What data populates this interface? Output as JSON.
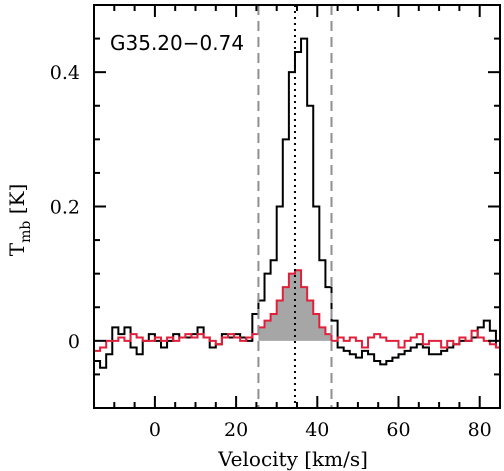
{
  "chart_data": {
    "type": "line",
    "title": "",
    "annotation": "G35.20−0.74",
    "xlabel": "Velocity [km/s]",
    "ylabel_main": "T",
    "ylabel_sub": "mb",
    "ylabel_unit": " [K]",
    "xlim": [
      -15,
      85
    ],
    "ylim": [
      -0.1,
      0.5
    ],
    "x_ticks": [
      0,
      20,
      40,
      60,
      80
    ],
    "x_tick_labels": [
      "0",
      "20",
      "40",
      "60",
      "80"
    ],
    "y_ticks": [
      0,
      0.2,
      0.4
    ],
    "y_tick_labels": [
      "0",
      "0.2",
      "0.4"
    ],
    "grid": false,
    "legend": "none",
    "bin_width": 1.5,
    "vlines": [
      {
        "x": 25.5,
        "style": "dashed",
        "color": "#909090"
      },
      {
        "x": 34.5,
        "style": "dotted",
        "color": "#000000"
      },
      {
        "x": 43.5,
        "style": "dashed",
        "color": "#909090"
      }
    ],
    "series": [
      {
        "color": "#000000",
        "style": "step",
        "x": [
          -15,
          -13.5,
          -12,
          -10.5,
          -9,
          -7.5,
          -6,
          -4.5,
          -3,
          -1.5,
          0,
          1.5,
          3,
          4.5,
          6,
          7.5,
          9,
          10.5,
          12,
          13.5,
          15,
          16.5,
          18,
          19.5,
          21,
          22.5,
          24,
          25.5,
          27,
          28.5,
          30,
          31.5,
          33,
          34.5,
          36,
          37.5,
          39,
          40.5,
          42,
          43.5,
          45,
          46.5,
          48,
          49.5,
          51,
          52.5,
          54,
          55.5,
          57,
          58.5,
          60,
          61.5,
          63,
          64.5,
          66,
          67.5,
          69,
          70.5,
          72,
          73.5,
          75,
          76.5,
          78,
          79.5,
          81,
          82.5,
          84
        ],
        "values": [
          -0.03,
          -0.04,
          -0.02,
          0.02,
          0.01,
          0.02,
          -0.01,
          -0.02,
          0.0,
          0.01,
          0.0,
          -0.01,
          0.0,
          0.01,
          0.005,
          0.005,
          0.01,
          0.02,
          0.005,
          -0.01,
          -0.005,
          0.01,
          0.005,
          0.01,
          0.005,
          0.0,
          0.04,
          0.06,
          0.1,
          0.12,
          0.2,
          0.3,
          0.4,
          0.43,
          0.45,
          0.35,
          0.2,
          0.12,
          0.08,
          0.03,
          -0.01,
          -0.015,
          -0.02,
          -0.025,
          -0.015,
          -0.02,
          -0.03,
          -0.035,
          -0.03,
          -0.025,
          -0.02,
          -0.015,
          -0.01,
          -0.005,
          -0.01,
          -0.02,
          -0.02,
          -0.015,
          -0.01,
          -0.005,
          0.0,
          0.0,
          0.005,
          0.02,
          0.03,
          0.015,
          -0.01
        ]
      },
      {
        "color": "#e0203a",
        "style": "step",
        "filled": true,
        "fill_color": "#a6a6a6",
        "fill_range": [
          25.5,
          43.5
        ],
        "x": [
          -15,
          -13.5,
          -12,
          -10.5,
          -9,
          -7.5,
          -6,
          -4.5,
          -3,
          -1.5,
          0,
          1.5,
          3,
          4.5,
          6,
          7.5,
          9,
          10.5,
          12,
          13.5,
          15,
          16.5,
          18,
          19.5,
          21,
          22.5,
          24,
          25.5,
          27,
          28.5,
          30,
          31.5,
          33,
          34.5,
          36,
          37.5,
          39,
          40.5,
          42,
          43.5,
          45,
          46.5,
          48,
          49.5,
          51,
          52.5,
          54,
          55.5,
          57,
          58.5,
          60,
          61.5,
          63,
          64.5,
          66,
          67.5,
          69,
          70.5,
          72,
          73.5,
          75,
          76.5,
          78,
          79.5,
          81,
          82.5,
          84
        ],
        "values": [
          -0.015,
          -0.01,
          0.0,
          0.0,
          0.005,
          0.0,
          0.01,
          0.005,
          0.0,
          0.0,
          0.005,
          0.0,
          0.005,
          0.0,
          0.005,
          0.01,
          0.005,
          0.01,
          0.005,
          0.0,
          -0.005,
          0.005,
          0.01,
          0.005,
          0.0,
          0.005,
          0.01,
          0.02,
          0.03,
          0.04,
          0.06,
          0.08,
          0.1,
          0.105,
          0.08,
          0.06,
          0.04,
          0.02,
          0.01,
          0.0,
          0.005,
          0.0,
          0.005,
          0.0,
          -0.01,
          0.005,
          0.01,
          0.005,
          0.0,
          0.0,
          -0.01,
          0.0,
          0.005,
          0.01,
          -0.005,
          0.0,
          0.0,
          -0.01,
          0.0,
          -0.005,
          0.005,
          0.0,
          0.015,
          0.005,
          0.0,
          -0.005,
          -0.01
        ]
      }
    ]
  }
}
